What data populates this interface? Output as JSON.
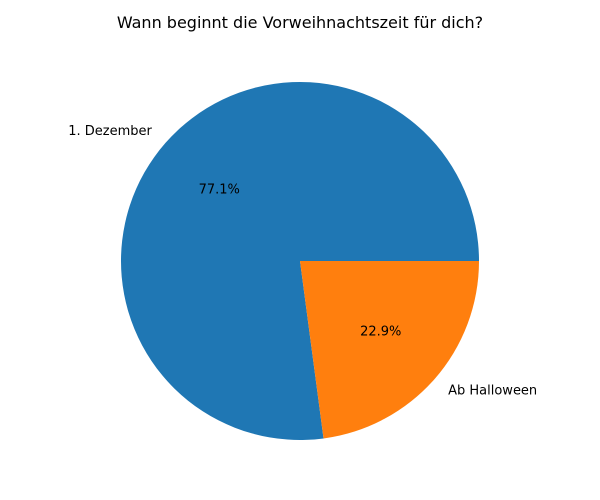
{
  "chart_data": {
    "type": "pie",
    "title": "Wann beginnt die Vorweihnachtszeit für dich?",
    "slices": [
      {
        "label": "1. Dezember",
        "value": 77.1,
        "pct_label": "77.1%",
        "color": "#1f77b4"
      },
      {
        "label": "Ab Halloween",
        "value": 22.9,
        "pct_label": "22.9%",
        "color": "#ff7f0e"
      }
    ],
    "start_angle": "0 degrees (3 o'clock), counter-clockwise",
    "legend": "none"
  }
}
